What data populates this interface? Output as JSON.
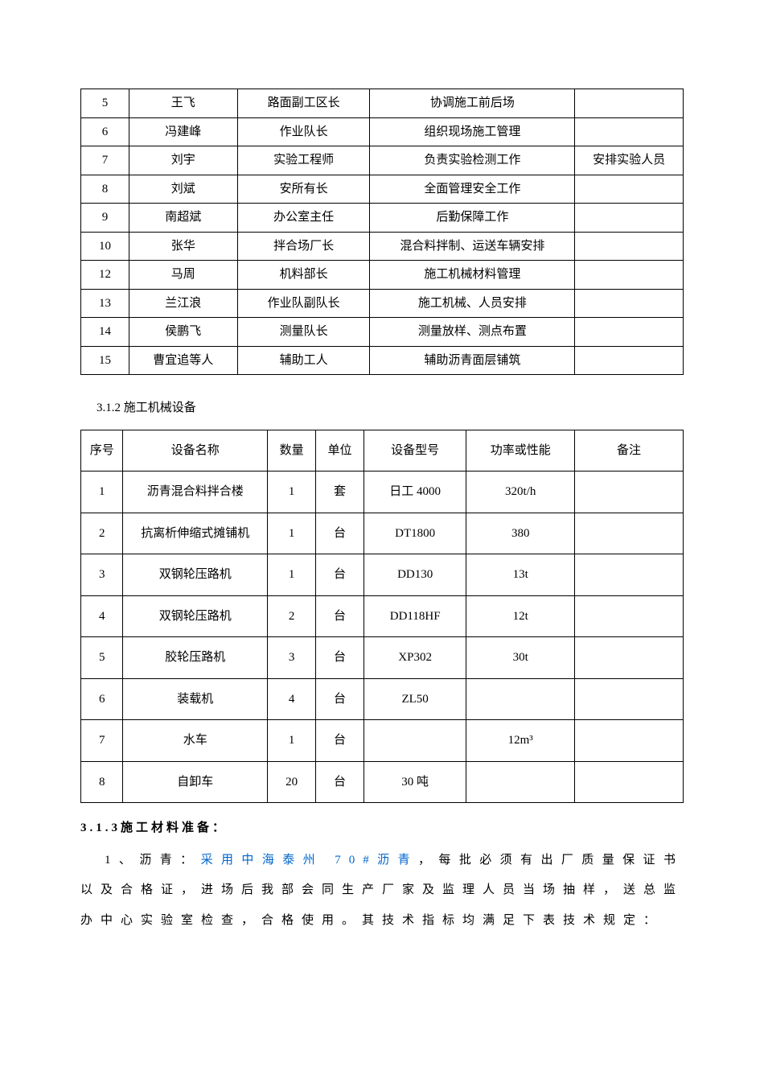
{
  "table1": {
    "rows": [
      {
        "n": "5",
        "name": "王飞",
        "role": "路面副工区长",
        "duty": "协调施工前后场",
        "note": ""
      },
      {
        "n": "6",
        "name": "冯建峰",
        "role": "作业队长",
        "duty": "组织现场施工管理",
        "note": ""
      },
      {
        "n": "7",
        "name": "刘宇",
        "role": "实验工程师",
        "duty": "负责实验检测工作",
        "note": "安排实验人员"
      },
      {
        "n": "8",
        "name": "刘斌",
        "role": "安所有长",
        "duty": "全面管理安全工作",
        "note": ""
      },
      {
        "n": "9",
        "name": "南超斌",
        "role": "办公室主任",
        "duty": "后勤保障工作",
        "note": ""
      },
      {
        "n": "10",
        "name": "张华",
        "role": "拌合场厂长",
        "duty": "混合料拌制、运送车辆安排",
        "note": ""
      },
      {
        "n": "12",
        "name": "马周",
        "role": "机料部长",
        "duty": "施工机械材料管理",
        "note": ""
      },
      {
        "n": "13",
        "name": "兰江浪",
        "role": "作业队副队长",
        "duty": "施工机械、人员安排",
        "note": ""
      },
      {
        "n": "14",
        "name": "侯鹏飞",
        "role": "测量队长",
        "duty": "测量放样、测点布置",
        "note": ""
      },
      {
        "n": "15",
        "name": "曹宜追等人",
        "role": "辅助工人",
        "duty": "辅助沥青面层铺筑",
        "note": ""
      }
    ]
  },
  "section312_title": "3.1.2  施工机械设备",
  "table2": {
    "headers": {
      "c1": "序号",
      "c2": "设备名称",
      "c3": "数量",
      "c4": "单位",
      "c5": "设备型号",
      "c6": "功率或性能",
      "c7": "备注"
    },
    "rows": [
      {
        "n": "1",
        "name": "沥青混合料拌合楼",
        "qty": "1",
        "unit": "套",
        "model": "日工 4000",
        "power": "320t/h",
        "note": ""
      },
      {
        "n": "2",
        "name": "抗离析伸缩式摊铺机",
        "qty": "1",
        "unit": "台",
        "model": "DT1800",
        "power": "380",
        "note": ""
      },
      {
        "n": "3",
        "name": "双钢轮压路机",
        "qty": "1",
        "unit": "台",
        "model": "DD130",
        "power": "13t",
        "note": ""
      },
      {
        "n": "4",
        "name": "双钢轮压路机",
        "qty": "2",
        "unit": "台",
        "model": "DD118HF",
        "power": "12t",
        "note": ""
      },
      {
        "n": "5",
        "name": "胶轮压路机",
        "qty": "3",
        "unit": "台",
        "model": "XP302",
        "power": "30t",
        "note": ""
      },
      {
        "n": "6",
        "name": "装载机",
        "qty": "4",
        "unit": "台",
        "model": "ZL50",
        "power": "",
        "note": ""
      },
      {
        "n": "7",
        "name": "水车",
        "qty": "1",
        "unit": "台",
        "model": "",
        "power": "12m³",
        "note": ""
      },
      {
        "n": "8",
        "name": "自卸车",
        "qty": "20",
        "unit": "台",
        "model": "30 吨",
        "power": "",
        "note": ""
      }
    ]
  },
  "section313_title": "3.1.3施工材料准备：",
  "paragraph": {
    "pre": "1、沥青：",
    "blue": "采用中海泰州 70#沥青",
    "post": "，每批必须有出厂质量保证书以及合格证，进场后我部会同生产厂家及监理人员当场抽样，送总监办中心实验室检查，合格使用。其技术指标均满足下表技术规定："
  }
}
